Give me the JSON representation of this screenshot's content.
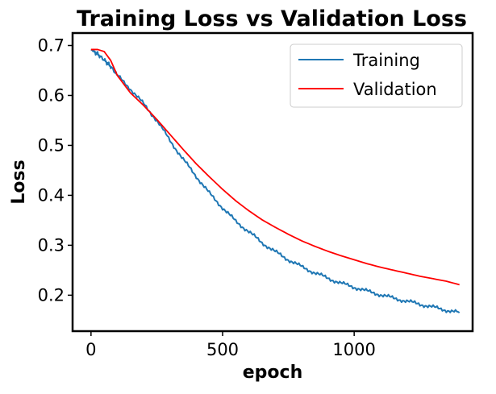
{
  "chart_data": {
    "type": "line",
    "title": "Training Loss vs Validation Loss",
    "xlabel": "epoch",
    "ylabel": "Loss",
    "xlim": [
      -70,
      1450
    ],
    "ylim": [
      0.128,
      0.725
    ],
    "xticks": [
      0,
      500,
      1000
    ],
    "xtick_labels": [
      "0",
      "500",
      "1000"
    ],
    "yticks": [
      0.2,
      0.3,
      0.4,
      0.5,
      0.6,
      0.7
    ],
    "ytick_labels": [
      "0.2",
      "0.3",
      "0.4",
      "0.5",
      "0.6",
      "0.7"
    ],
    "grid": false,
    "legend_position": "top-right",
    "series": [
      {
        "name": "Training",
        "color": "#1f77b4",
        "x": [
          0,
          25,
          50,
          75,
          100,
          150,
          200,
          250,
          300,
          350,
          400,
          450,
          500,
          550,
          600,
          650,
          700,
          750,
          800,
          850,
          900,
          950,
          1000,
          1050,
          1100,
          1150,
          1200,
          1250,
          1300,
          1350,
          1400
        ],
        "y": [
          0.692,
          0.683,
          0.671,
          0.658,
          0.64,
          0.613,
          0.583,
          0.55,
          0.51,
          0.472,
          0.438,
          0.404,
          0.375,
          0.348,
          0.327,
          0.305,
          0.287,
          0.271,
          0.257,
          0.245,
          0.234,
          0.224,
          0.216,
          0.208,
          0.201,
          0.194,
          0.188,
          0.182,
          0.176,
          0.17,
          0.165
        ]
      },
      {
        "name": "Validation",
        "color": "#ff0000",
        "x": [
          0,
          25,
          50,
          75,
          100,
          150,
          200,
          250,
          300,
          350,
          400,
          450,
          500,
          550,
          600,
          650,
          700,
          750,
          800,
          850,
          900,
          950,
          1000,
          1050,
          1100,
          1150,
          1200,
          1250,
          1300,
          1350,
          1400
        ],
        "y": [
          0.692,
          0.692,
          0.688,
          0.67,
          0.64,
          0.605,
          0.58,
          0.552,
          0.522,
          0.492,
          0.463,
          0.437,
          0.412,
          0.389,
          0.369,
          0.351,
          0.336,
          0.322,
          0.309,
          0.298,
          0.288,
          0.279,
          0.271,
          0.263,
          0.256,
          0.25,
          0.244,
          0.238,
          0.233,
          0.228,
          0.221
        ]
      }
    ]
  }
}
